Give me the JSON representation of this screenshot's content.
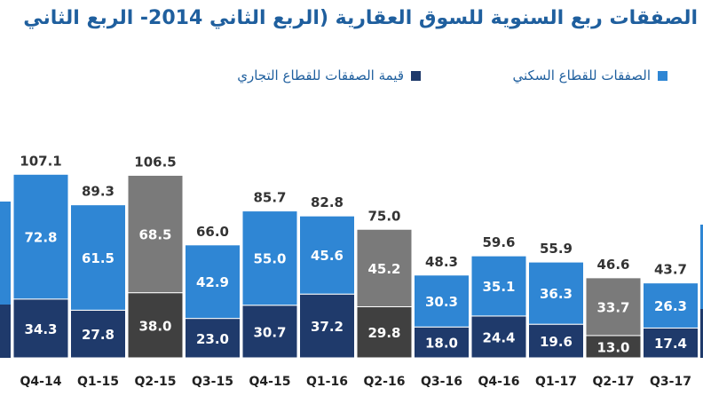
{
  "title": "الصفقات ربع السنوية للسوق العقارية (الربع الثاني 2014- الربع الثاني",
  "legend": {
    "residential": "الصفقات للقطاع السكني",
    "commercial": "قيمة الصفقات للقطاع التجاري"
  },
  "colors": {
    "residential": "#2f86d4",
    "commercial": "#1f3a6b",
    "q2_top": "#7a7a7a",
    "q2_bottom": "#404040",
    "title": "#1f5f9e"
  },
  "chart_data": {
    "type": "bar",
    "stacked": true,
    "categories": [
      "Q4-14",
      "Q1-15",
      "Q2-15",
      "Q3-15",
      "Q4-15",
      "Q1-16",
      "Q2-16",
      "Q3-16",
      "Q4-16",
      "Q1-17",
      "Q2-17",
      "Q3-17"
    ],
    "series": [
      {
        "name": "قيمة الصفقات للقطاع التجاري",
        "values": [
          34.3,
          27.8,
          38.0,
          23.0,
          30.7,
          37.2,
          29.8,
          18.0,
          24.4,
          19.6,
          13.0,
          17.4
        ]
      },
      {
        "name": "الصفقات للقطاع السكني",
        "values": [
          72.8,
          61.5,
          68.5,
          42.9,
          55.0,
          45.6,
          45.2,
          30.3,
          35.1,
          36.3,
          33.7,
          26.3
        ]
      }
    ],
    "totals": [
      107.1,
      89.3,
      106.5,
      66.0,
      85.7,
      82.8,
      75.0,
      48.3,
      59.6,
      55.9,
      46.6,
      43.7
    ],
    "segment_labels": [
      [
        "34.3",
        "27.8",
        "38.0",
        "23.0",
        "30.7",
        "37.2",
        "29.8",
        "18.0",
        "24.4",
        "19.6",
        "13.0",
        "17.4"
      ],
      [
        "72.8",
        "61.5",
        "68.5",
        "42.9",
        "55.0",
        "45.6",
        "45.2",
        "30.3",
        "35.1",
        "36.3",
        "33.7",
        "26.3"
      ]
    ],
    "total_labels": [
      "107.1",
      "89.3",
      "106.5",
      "66.0",
      "85.7",
      "82.8",
      "75.0",
      "48.3",
      "59.6",
      "55.9",
      "46.6",
      "43.7"
    ],
    "highlighted_categories": [
      "Q2-15",
      "Q2-16",
      "Q2-17"
    ],
    "legend_position": "top",
    "grid": false
  }
}
